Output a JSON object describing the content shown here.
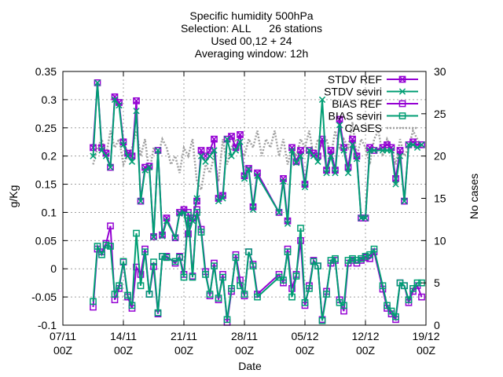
{
  "chart_data": {
    "type": "line",
    "title_lines": [
      "Specific humidity 500hPa",
      "Selection: ALL      26 stations",
      "Used 00,12 + 24",
      "Averaging window: 12h"
    ],
    "xlabel": "Date",
    "ylabel": "g/Kg",
    "y2label": "No cases",
    "x_ticks": [
      {
        "day": 0,
        "line1": "07/11",
        "line2": "00Z"
      },
      {
        "day": 7,
        "line1": "14/11",
        "line2": "00Z"
      },
      {
        "day": 14,
        "line1": "21/11",
        "line2": "00Z"
      },
      {
        "day": 21,
        "line1": "28/11",
        "line2": "00Z"
      },
      {
        "day": 28,
        "line1": "05/12",
        "line2": "00Z"
      },
      {
        "day": 35,
        "line1": "12/12",
        "line2": "00Z"
      },
      {
        "day": 42,
        "line1": "19/12",
        "line2": "00Z"
      }
    ],
    "xlim": [
      0,
      42
    ],
    "ylim": [
      -0.1,
      0.35
    ],
    "y_ticks": [
      -0.1,
      -0.05,
      0,
      0.05,
      0.1,
      0.15,
      0.2,
      0.25,
      0.3,
      0.35
    ],
    "y2lim": [
      0,
      30
    ],
    "y2_ticks": [
      0,
      5,
      10,
      15,
      20,
      25,
      30
    ],
    "grid": true,
    "legend_position": "top-right",
    "series": [
      {
        "name": "STDV REF",
        "color": "#9400d3",
        "marker": "x-box",
        "axis": "y",
        "x": [
          3.5,
          4,
          4.5,
          5,
          5.5,
          6,
          6.5,
          7,
          7.5,
          8,
          8.5,
          9,
          9.5,
          10,
          10.5,
          11,
          11.5,
          12,
          13,
          13.5,
          14,
          14.5,
          15,
          15.5,
          16,
          16.5,
          17,
          17.5,
          18,
          18.5,
          19,
          19.5,
          20,
          20.5,
          21,
          21.5,
          22,
          22.5,
          25,
          25.5,
          26,
          26.5,
          27,
          27.5,
          28,
          28.5,
          29,
          29.5,
          30,
          30.5,
          31,
          31.5,
          32,
          32.5,
          33,
          33.5,
          34,
          34.5,
          35,
          35.5,
          36,
          37,
          37.5,
          38,
          38.5,
          39,
          39.5,
          40,
          40.5,
          41,
          41.5
        ],
        "y": [
          0.215,
          0.33,
          0.215,
          0.205,
          0.18,
          0.305,
          0.295,
          0.225,
          0.205,
          0.2,
          0.298,
          0.12,
          0.18,
          0.182,
          0.057,
          0.21,
          0.06,
          0.09,
          0.055,
          0.1,
          0.105,
          0.062,
          0.09,
          0.12,
          0.21,
          0.2,
          0.21,
          0.23,
          0.125,
          0.13,
          0.23,
          0.235,
          0.215,
          0.238,
          0.165,
          0.178,
          0.11,
          0.17,
          0.1,
          0.16,
          0.085,
          0.215,
          0.19,
          0.21,
          0.15,
          0.21,
          0.205,
          0.2,
          0.23,
          0.175,
          0.21,
          0.175,
          0.265,
          0.215,
          0.18,
          0.23,
          0.2,
          0.09,
          0.09,
          0.215,
          0.21,
          0.215,
          0.22,
          0.215,
          0.16,
          0.21,
          0.12,
          0.22,
          0.225,
          0.22,
          0.22
        ]
      },
      {
        "name": "STDV seviri",
        "color": "#009e73",
        "marker": "x",
        "axis": "y",
        "x": [
          3.5,
          4,
          4.5,
          5,
          5.5,
          6,
          6.5,
          7,
          7.5,
          8,
          8.5,
          9,
          9.5,
          10,
          10.5,
          11,
          11.5,
          12,
          13,
          13.5,
          14,
          14.5,
          15,
          15.5,
          16,
          16.5,
          17,
          17.5,
          18,
          18.5,
          19,
          19.5,
          20,
          20.5,
          21,
          21.5,
          22,
          22.5,
          25,
          25.5,
          26,
          26.5,
          27,
          27.5,
          28,
          28.5,
          29,
          29.5,
          30,
          30.5,
          31,
          31.5,
          32,
          32.5,
          33,
          33.5,
          34,
          34.5,
          35,
          35.5,
          36,
          37,
          37.5,
          38,
          38.5,
          39,
          39.5,
          40,
          40.5,
          41,
          41.5
        ],
        "y": [
          0.2,
          0.33,
          0.21,
          0.2,
          0.18,
          0.3,
          0.29,
          0.22,
          0.2,
          0.19,
          0.28,
          0.12,
          0.175,
          0.18,
          0.056,
          0.21,
          0.058,
          0.085,
          0.055,
          0.098,
          0.1,
          0.06,
          0.085,
          0.125,
          0.2,
          0.19,
          0.2,
          0.21,
          0.12,
          0.125,
          0.23,
          0.2,
          0.21,
          0.225,
          0.16,
          0.176,
          0.105,
          0.165,
          0.1,
          0.155,
          0.08,
          0.21,
          0.188,
          0.2,
          0.145,
          0.21,
          0.2,
          0.19,
          0.3,
          0.17,
          0.2,
          0.17,
          0.255,
          0.21,
          0.17,
          0.22,
          0.195,
          0.09,
          0.09,
          0.21,
          0.21,
          0.21,
          0.21,
          0.21,
          0.15,
          0.2,
          0.12,
          0.22,
          0.22,
          0.215,
          0.22
        ]
      },
      {
        "name": "BIAS REF",
        "color": "#9400d3",
        "marker": "box",
        "axis": "y",
        "x": [
          3.5,
          4,
          4.5,
          5,
          5.5,
          6,
          6.5,
          7,
          7.5,
          8,
          8.5,
          9,
          9.5,
          10,
          10.5,
          11,
          11.5,
          12,
          13,
          13.5,
          14,
          14.5,
          15,
          15.5,
          16,
          16.5,
          17,
          17.5,
          18,
          18.5,
          19,
          19.5,
          20,
          20.5,
          21,
          21.5,
          22,
          22.5,
          25,
          25.5,
          26,
          26.5,
          27,
          27.5,
          28,
          28.5,
          29,
          29.5,
          30,
          30.5,
          31,
          31.5,
          32,
          32.5,
          33,
          33.5,
          34,
          34.5,
          35,
          35.5,
          36,
          37,
          37.5,
          38,
          38.5,
          39,
          39.5,
          40,
          40.5,
          41,
          41.5
        ],
        "y": [
          -0.068,
          0.035,
          0.03,
          0.045,
          0.076,
          -0.055,
          -0.035,
          0.012,
          -0.05,
          -0.07,
          0.003,
          -0.01,
          0.035,
          -0.045,
          0.004,
          -0.08,
          0.022,
          0.022,
          0.01,
          0.022,
          -0.01,
          0.1,
          -0.013,
          0.105,
          0.07,
          -0.005,
          -0.048,
          0.01,
          -0.055,
          -0.01,
          -0.095,
          -0.04,
          0.025,
          -0.02,
          -0.048,
          0.03,
          0.008,
          -0.045,
          -0.01,
          -0.025,
          0.035,
          -0.035,
          -0.01,
          0.05,
          -0.065,
          -0.03,
          0.015,
          0.005,
          -0.09,
          -0.04,
          0.01,
          0.015,
          -0.055,
          -0.075,
          0.01,
          0.015,
          0.01,
          0.015,
          0.02,
          0.018,
          0.03,
          -0.036,
          -0.07,
          -0.08,
          -0.09,
          -0.025,
          -0.03,
          -0.06,
          -0.04,
          -0.03,
          -0.05
        ]
      },
      {
        "name": "BIAS seviri",
        "color": "#009e73",
        "marker": "box",
        "axis": "y",
        "x": [
          3.5,
          4,
          4.5,
          5,
          5.5,
          6,
          6.5,
          7,
          7.5,
          8,
          8.5,
          9,
          9.5,
          10,
          10.5,
          11,
          11.5,
          12,
          13,
          13.5,
          14,
          14.5,
          15,
          15.5,
          16,
          16.5,
          17,
          17.5,
          18,
          18.5,
          19,
          19.5,
          20,
          20.5,
          21,
          21.5,
          22,
          22.5,
          25,
          25.5,
          26,
          26.5,
          27,
          27.5,
          28,
          28.5,
          29,
          29.5,
          30,
          30.5,
          31,
          31.5,
          32,
          32.5,
          33,
          33.5,
          34,
          34.5,
          35,
          35.5,
          36,
          37,
          37.5,
          38,
          38.5,
          39,
          39.5,
          40,
          40.5,
          41,
          41.5
        ],
        "y": [
          -0.058,
          0.04,
          0.025,
          0.042,
          0.04,
          -0.045,
          -0.03,
          0.013,
          -0.047,
          -0.065,
          0.063,
          -0.03,
          0.03,
          -0.045,
          0.012,
          -0.078,
          0.022,
          0.02,
          0.013,
          0.02,
          -0.015,
          0.095,
          -0.015,
          0.1,
          0.065,
          -0.01,
          -0.045,
          0.005,
          -0.052,
          -0.015,
          -0.09,
          -0.035,
          0.02,
          -0.03,
          -0.045,
          0.03,
          0.005,
          -0.05,
          -0.015,
          -0.02,
          0.03,
          -0.05,
          -0.013,
          0.072,
          -0.06,
          -0.035,
          0.013,
          0.005,
          -0.092,
          -0.045,
          0.015,
          0.018,
          -0.06,
          -0.065,
          0.015,
          0.018,
          0.015,
          0.018,
          0.022,
          0.025,
          0.035,
          -0.03,
          -0.065,
          -0.075,
          -0.085,
          -0.025,
          -0.03,
          -0.055,
          -0.035,
          -0.025,
          -0.025
        ]
      },
      {
        "name": "CASES",
        "color": "#a0a0a0",
        "style": "dotted",
        "axis": "y2",
        "x": [
          3.5,
          4,
          4.5,
          5,
          5.5,
          6,
          6.5,
          7,
          7.5,
          8,
          8.5,
          9,
          9.5,
          10,
          10.5,
          11,
          11.5,
          12,
          12.5,
          13,
          13.5,
          14,
          14.5,
          15,
          15.5,
          16,
          16.5,
          17,
          17.5,
          18,
          18.5,
          19,
          19.5,
          20,
          20.5,
          21,
          21.5,
          22,
          22.5,
          23,
          23.5,
          24,
          24.5,
          25,
          25.5,
          26,
          26.5,
          27,
          27.5,
          28,
          28.5,
          29,
          29.5,
          30,
          30.5,
          31,
          31.5,
          32,
          32.5,
          33,
          33.5,
          34,
          34.5,
          35,
          35.5,
          36,
          36.5,
          37,
          37.5,
          38,
          38.5,
          39,
          39.5,
          40,
          40.5,
          41,
          41.5
        ],
        "y": [
          19,
          21,
          22,
          20,
          23,
          21,
          22,
          19,
          20,
          21,
          23,
          20,
          22,
          18,
          21,
          20,
          22,
          21,
          19,
          20,
          18,
          21,
          20,
          22,
          17,
          16,
          19,
          18,
          20,
          17,
          22,
          19,
          21,
          22,
          21,
          20,
          22,
          21,
          23,
          20,
          22,
          21,
          23,
          20,
          22,
          19,
          21,
          20,
          22,
          21,
          23,
          20,
          22,
          21,
          22,
          20,
          23,
          21,
          22,
          21,
          24,
          20,
          22,
          21,
          19,
          22,
          23,
          20,
          22,
          21,
          19,
          22,
          20,
          21,
          23,
          22,
          21
        ]
      }
    ]
  }
}
